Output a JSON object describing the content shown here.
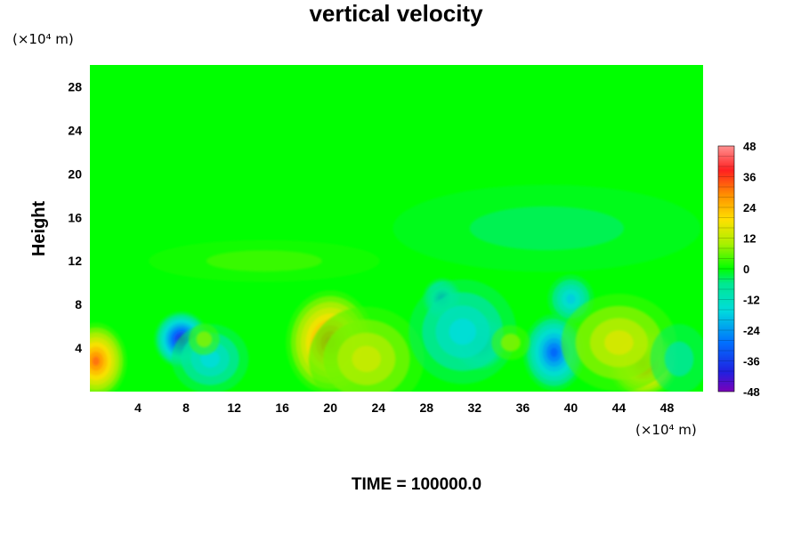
{
  "chart_data": {
    "type": "heatmap",
    "title": "vertical velocity",
    "xlabel": "",
    "ylabel": "Height",
    "x_unit_label": "(×10⁴ m)",
    "y_unit_label": "(×10⁴ m)",
    "time_label": "TIME = 100000.0",
    "xlim": [
      0,
      51
    ],
    "ylim": [
      0,
      30
    ],
    "x_ticks": [
      4,
      8,
      12,
      16,
      20,
      24,
      28,
      32,
      36,
      40,
      44,
      48
    ],
    "y_ticks": [
      4,
      8,
      12,
      16,
      20,
      24,
      28
    ],
    "colorbar": {
      "range": [
        -48,
        48
      ],
      "step": 4,
      "ticks": [
        48,
        36,
        24,
        12,
        0,
        -12,
        -24,
        -36,
        -48
      ]
    },
    "features": [
      {
        "x": 0.5,
        "y": 2.8,
        "value": 32,
        "sx": 1.6,
        "sy": 2.2
      },
      {
        "x": 7.6,
        "y": 4.8,
        "value": -40,
        "sx": 1.4,
        "sy": 1.6
      },
      {
        "x": 10.0,
        "y": 3.0,
        "value": -16,
        "sx": 2.0,
        "sy": 2.0
      },
      {
        "x": 20.0,
        "y": 4.5,
        "value": 34,
        "sx": 2.3,
        "sy": 3.0
      },
      {
        "x": 23.0,
        "y": 3.0,
        "value": 14,
        "sx": 3.0,
        "sy": 3.0
      },
      {
        "x": 29.3,
        "y": 8.5,
        "value": -28,
        "sx": 1.0,
        "sy": 1.2
      },
      {
        "x": 32.4,
        "y": 4.5,
        "value": -40,
        "sx": 1.4,
        "sy": 1.6
      },
      {
        "x": 31.0,
        "y": 5.5,
        "value": -16,
        "sx": 2.8,
        "sy": 3.0
      },
      {
        "x": 38.6,
        "y": 3.6,
        "value": -30,
        "sx": 1.6,
        "sy": 2.2
      },
      {
        "x": 40.0,
        "y": 8.5,
        "value": -18,
        "sx": 1.2,
        "sy": 1.4
      },
      {
        "x": 46.0,
        "y": 2.6,
        "value": 34,
        "sx": 1.8,
        "sy": 2.0
      },
      {
        "x": 44.0,
        "y": 4.5,
        "value": 16,
        "sx": 3.0,
        "sy": 2.8
      },
      {
        "x": 49.0,
        "y": 3.0,
        "value": -8,
        "sx": 1.5,
        "sy": 2.0
      },
      {
        "x": 35.0,
        "y": 4.5,
        "value": 8,
        "sx": 1.0,
        "sy": 1.0
      },
      {
        "x": 9.5,
        "y": 4.8,
        "value": 8,
        "sx": 0.8,
        "sy": 0.9
      },
      {
        "x": 14.5,
        "y": 12.0,
        "value": 4,
        "sx": 6.0,
        "sy": 1.2
      },
      {
        "x": 38.0,
        "y": 15.0,
        "value": -4,
        "sx": 8.0,
        "sy": 2.5
      }
    ]
  }
}
